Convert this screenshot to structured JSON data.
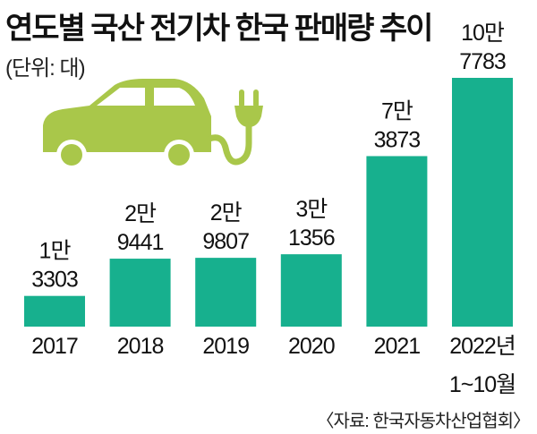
{
  "chart_data": {
    "type": "bar",
    "title": "연도별 국산 전기차 한국 판매량 추이",
    "unit_label": "(단위: 대)",
    "source": "〈자료: 한국자동차산업협회〉",
    "categories": [
      "2017",
      "2018",
      "2019",
      "2020",
      "2021",
      "2022년"
    ],
    "category_sublabels": [
      "",
      "",
      "",
      "",
      "",
      "1~10월"
    ],
    "values": [
      13303,
      29441,
      29807,
      31356,
      73873,
      107783
    ],
    "data_labels": [
      [
        "1만",
        "3303"
      ],
      [
        "2만",
        "9441"
      ],
      [
        "2만",
        "9807"
      ],
      [
        "3만",
        "1356"
      ],
      [
        "7만",
        "3873"
      ],
      [
        "10만",
        "7783"
      ]
    ],
    "ylim": [
      0,
      110000
    ],
    "grid": false,
    "xlabel": "",
    "ylabel": "",
    "colors": {
      "bar": "#17b08e",
      "icon": "#a9c74a"
    },
    "icon": "electric-car-plug-icon"
  }
}
